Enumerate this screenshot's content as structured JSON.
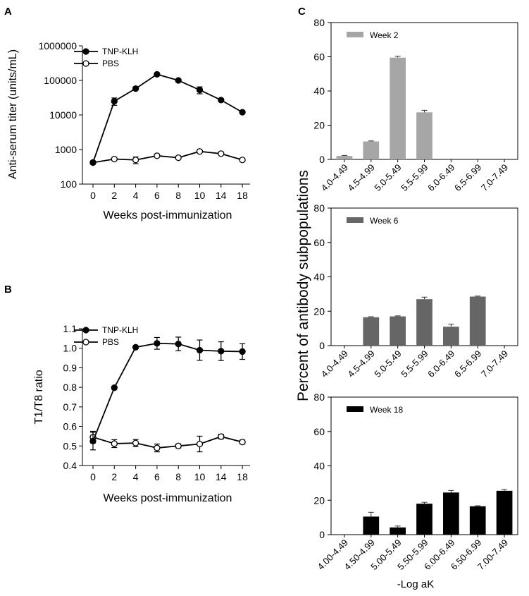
{
  "panel_labels": {
    "a": "A",
    "b": "B",
    "c": "C"
  },
  "chart_data": [
    {
      "id": "A",
      "type": "line",
      "yscale": "log",
      "xlabel": "Weeks post-immunization",
      "ylabel": "Anti-serum titer (units/mL)",
      "ylim": [
        100,
        1000000
      ],
      "yticks": [
        100,
        1000,
        10000,
        100000,
        1000000
      ],
      "ytick_labels": [
        "100",
        "1000",
        "10000",
        "100000",
        "1000000"
      ],
      "categories": [
        "0",
        "2",
        "4",
        "6",
        "8",
        "10",
        "14",
        "18"
      ],
      "legend": {
        "placement": "top-left"
      },
      "series": [
        {
          "name": "TNP-KLH",
          "marker": "filled",
          "values": [
            420,
            25000,
            58000,
            150000,
            100000,
            53000,
            27000,
            12000
          ],
          "errors": [
            30,
            6000,
            4000,
            8000,
            5000,
            12000,
            2500,
            800
          ]
        },
        {
          "name": "PBS",
          "marker": "open",
          "values": [
            420,
            530,
            500,
            660,
            580,
            880,
            760,
            500
          ],
          "errors": [
            40,
            30,
            110,
            40,
            40,
            60,
            50,
            50
          ]
        }
      ]
    },
    {
      "id": "B",
      "type": "line",
      "xlabel": "Weeks post-immunization",
      "ylabel": "T1/T8 ratio",
      "ylim": [
        0.4,
        1.1
      ],
      "yticks": [
        0.4,
        0.5,
        0.6,
        0.7,
        0.8,
        0.9,
        1.0,
        1.1
      ],
      "ytick_labels": [
        "0.4",
        "0.5",
        "0.6",
        "0.7",
        "0.8",
        "0.9",
        "1.0",
        "1.1"
      ],
      "categories": [
        "0",
        "2",
        "4",
        "6",
        "8",
        "10",
        "14",
        "18"
      ],
      "legend": {
        "placement": "top-left"
      },
      "series": [
        {
          "name": "TNP-KLH",
          "marker": "filled",
          "values": [
            0.525,
            0.798,
            1.005,
            1.025,
            1.022,
            0.99,
            0.985,
            0.983
          ],
          "errors": [
            0.045,
            0.008,
            0.005,
            0.03,
            0.035,
            0.052,
            0.048,
            0.04
          ]
        },
        {
          "name": "PBS",
          "marker": "open",
          "values": [
            0.545,
            0.512,
            0.515,
            0.49,
            0.5,
            0.51,
            0.548,
            0.52
          ],
          "errors": [
            0.03,
            0.02,
            0.018,
            0.02,
            0.01,
            0.04,
            0.012,
            0.01
          ]
        }
      ]
    },
    {
      "id": "C-week2",
      "type": "bar",
      "legend": "Week 2",
      "color": "#a6a6a6",
      "ylim": [
        0,
        80
      ],
      "yticks": [
        0,
        20,
        40,
        60,
        80
      ],
      "categories": [
        "4.0-4.49",
        "4.5-4.99",
        "5.0-5.49",
        "5.5-5.99",
        "6.0-6.49",
        "6.5-6.99",
        "7.0-7.49"
      ],
      "values": [
        2,
        10.5,
        59.5,
        27.5,
        0,
        0,
        0
      ],
      "errors": [
        0.3,
        0.3,
        0.8,
        1.2,
        0,
        0,
        0
      ]
    },
    {
      "id": "C-week6",
      "type": "bar",
      "legend": "Week 6",
      "color": "#666666",
      "ylim": [
        0,
        80
      ],
      "yticks": [
        0,
        20,
        40,
        60,
        80
      ],
      "categories": [
        "4.0-4.49",
        "4.5-4.99",
        "5.0-5.49",
        "5.5-5.99",
        "6.0-6.49",
        "6.5-6.99",
        "7.0-7.49"
      ],
      "values": [
        0,
        16.5,
        17,
        27,
        11,
        28.5,
        0
      ],
      "errors": [
        0,
        0.3,
        0.3,
        1.2,
        1.5,
        0.3,
        0
      ]
    },
    {
      "id": "C-week18",
      "type": "bar",
      "legend": "Week 18",
      "color": "#000000",
      "ylim": [
        0,
        80
      ],
      "yticks": [
        0,
        20,
        40,
        60,
        80
      ],
      "categories": [
        "4.00-4.49",
        "4.50-4.99",
        "5.00-5.49",
        "5.50-5.99",
        "6.00-6.49",
        "6.50-6.99",
        "7.00-7.49"
      ],
      "values": [
        0,
        10.5,
        4.2,
        18,
        24.5,
        16.5,
        25.5
      ],
      "errors": [
        0,
        2.5,
        0.8,
        0.8,
        1.2,
        0.3,
        0.8
      ],
      "xlabel": "-Log aK"
    }
  ],
  "panel_c": {
    "ylabel": "Percent of antibody subpopulations"
  }
}
